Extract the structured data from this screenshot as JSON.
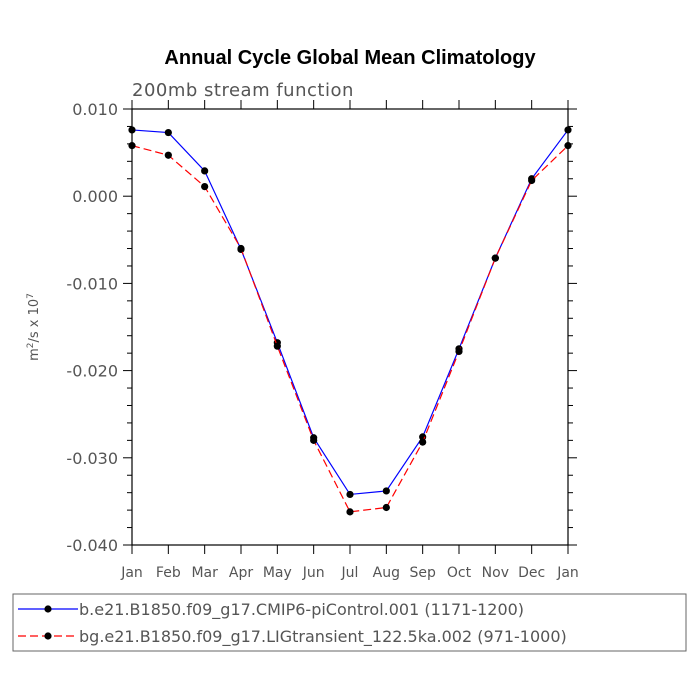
{
  "chart_data": {
    "type": "line",
    "title": "Annual Cycle Global Mean Climatology",
    "subtitle": "200mb stream function",
    "ylabel": "m2/s x 107",
    "ylabel_parts": {
      "base": "m",
      "sup1": "2",
      "mid": "/s x 10",
      "sup2": "7"
    },
    "xlabel": "",
    "categories": [
      "Jan",
      "Feb",
      "Mar",
      "Apr",
      "May",
      "Jun",
      "Jul",
      "Aug",
      "Sep",
      "Oct",
      "Nov",
      "Dec",
      "Jan"
    ],
    "ylim": [
      -0.04,
      0.01
    ],
    "yticks": [
      "0.010",
      "0.000",
      "-0.010",
      "-0.020",
      "-0.030",
      "-0.040"
    ],
    "ytick_values": [
      0.01,
      0.0,
      -0.01,
      -0.02,
      -0.03,
      -0.04
    ],
    "series": [
      {
        "name": "b.e21.B1850.f09_g17.CMIP6-piControl.001 (1171-1200)",
        "color": "#0000ff",
        "dash": "solid",
        "values": [
          0.0076,
          0.0073,
          0.0029,
          -0.0061,
          -0.0168,
          -0.0277,
          -0.0342,
          -0.0338,
          -0.0276,
          -0.0175,
          -0.0071,
          0.002,
          0.0076
        ]
      },
      {
        "name": "bg.e21.B1850.f09_g17.LIGtransient_122.5ka.002 (971-1000)",
        "color": "#ff0000",
        "dash": "dashed",
        "values": [
          0.0058,
          0.0047,
          0.0011,
          -0.006,
          -0.0172,
          -0.028,
          -0.0362,
          -0.0357,
          -0.0282,
          -0.0178,
          -0.0071,
          0.0018,
          0.0058
        ]
      }
    ]
  }
}
